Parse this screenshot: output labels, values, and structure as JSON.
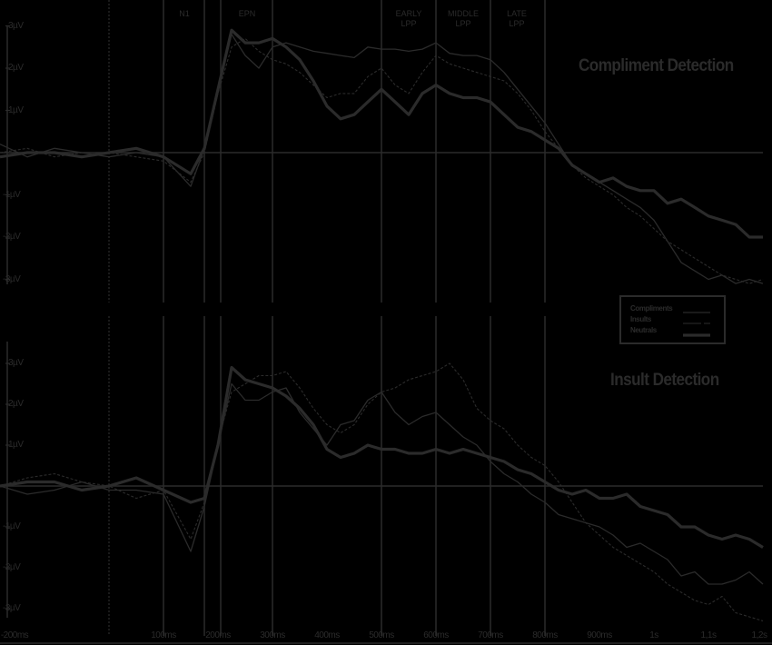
{
  "chart_data": [
    {
      "type": "line",
      "title": "Compliment Detection",
      "xlabel": "",
      "ylabel": "",
      "xlim_ms": [
        -200,
        1200
      ],
      "ylim_uV": [
        -3,
        3
      ],
      "y_ticks": [
        "3µV",
        "2µV",
        "1µV",
        "-1µV",
        "-2µV",
        "-3µV"
      ],
      "x_ticks": [
        "-200ms",
        "100ms",
        "200ms",
        "300ms",
        "400ms",
        "500ms",
        "600ms",
        "700ms",
        "800ms",
        "900ms",
        "1s",
        "1,1s",
        "1,2s"
      ],
      "time_windows": [
        {
          "label": "N1",
          "start_ms": 100,
          "end_ms": 175
        },
        {
          "label": "EPN",
          "start_ms": 205,
          "end_ms": 300
        },
        {
          "label": "EARLY LPP",
          "start_ms": 500,
          "end_ms": 600
        },
        {
          "label": "MIDDLE LPP",
          "start_ms": 600,
          "end_ms": 700
        },
        {
          "label": "LATE LPP",
          "start_ms": 700,
          "end_ms": 800
        }
      ],
      "x_ms": [
        -200,
        -150,
        -100,
        -50,
        0,
        50,
        100,
        150,
        175,
        200,
        225,
        250,
        275,
        300,
        325,
        350,
        375,
        400,
        425,
        450,
        475,
        500,
        525,
        550,
        575,
        600,
        625,
        650,
        675,
        700,
        725,
        750,
        775,
        800,
        825,
        850,
        875,
        900,
        925,
        950,
        975,
        1000,
        1025,
        1050,
        1075,
        1100,
        1125,
        1150,
        1175,
        1200
      ],
      "series": [
        {
          "name": "Compliments",
          "style": "thin-solid",
          "values": [
            0.2,
            -0.1,
            0.1,
            0.0,
            -0.1,
            0.0,
            -0.1,
            -0.8,
            0.1,
            1.5,
            2.8,
            2.3,
            2.0,
            2.5,
            2.6,
            2.5,
            2.4,
            2.35,
            2.3,
            2.25,
            2.5,
            2.45,
            2.45,
            2.4,
            2.45,
            2.6,
            2.35,
            2.3,
            2.3,
            2.2,
            1.9,
            1.5,
            1.1,
            0.7,
            0.2,
            -0.3,
            -0.5,
            -0.7,
            -0.9,
            -1.1,
            -1.3,
            -1.6,
            -2.1,
            -2.6,
            -2.8,
            -3.0,
            -2.9,
            -3.1,
            -3.0,
            -3.1
          ]
        },
        {
          "name": "Insults",
          "style": "thin-dash",
          "values": [
            0.0,
            0.1,
            -0.1,
            0.0,
            0.0,
            -0.1,
            -0.2,
            -0.7,
            0.0,
            1.4,
            2.5,
            2.7,
            2.4,
            2.2,
            2.1,
            1.9,
            1.6,
            1.3,
            1.4,
            1.4,
            1.8,
            2.0,
            1.6,
            1.4,
            1.9,
            2.3,
            2.1,
            2.0,
            1.9,
            1.8,
            1.7,
            1.4,
            1.0,
            0.5,
            0.1,
            -0.3,
            -0.6,
            -0.8,
            -1.0,
            -1.3,
            -1.5,
            -1.8,
            -2.1,
            -2.3,
            -2.5,
            -2.7,
            -2.9,
            -3.0,
            -3.1,
            -3.0
          ]
        },
        {
          "name": "Neutrals",
          "style": "thick-solid",
          "values": [
            -0.1,
            0.0,
            0.0,
            -0.1,
            0.0,
            0.1,
            -0.1,
            -0.5,
            0.1,
            1.5,
            2.9,
            2.6,
            2.6,
            2.7,
            2.5,
            2.2,
            1.7,
            1.1,
            0.8,
            0.9,
            1.2,
            1.5,
            1.2,
            0.9,
            1.4,
            1.6,
            1.4,
            1.3,
            1.3,
            1.2,
            0.9,
            0.6,
            0.5,
            0.3,
            0.1,
            -0.3,
            -0.5,
            -0.7,
            -0.6,
            -0.8,
            -0.9,
            -0.9,
            -1.2,
            -1.1,
            -1.3,
            -1.5,
            -1.6,
            -1.7,
            -2.0,
            -2.0
          ]
        }
      ]
    },
    {
      "type": "line",
      "title": "Insult Detection",
      "xlabel": "",
      "ylabel": "",
      "xlim_ms": [
        -200,
        1200
      ],
      "ylim_uV": [
        -3,
        3
      ],
      "y_ticks": [
        "3µV",
        "2µV",
        "1µV",
        "-1µV",
        "-2µV",
        "-3µV"
      ],
      "x_ticks": [
        "-200ms",
        "100ms",
        "200ms",
        "300ms",
        "400ms",
        "500ms",
        "600ms",
        "700ms",
        "800ms",
        "900ms",
        "1s",
        "1,1s",
        "1,2s"
      ],
      "time_windows": [
        {
          "label": "N1",
          "start_ms": 100,
          "end_ms": 175
        },
        {
          "label": "EPN",
          "start_ms": 205,
          "end_ms": 300
        },
        {
          "label": "EARLY LPP",
          "start_ms": 500,
          "end_ms": 600
        },
        {
          "label": "MIDDLE LPP",
          "start_ms": 600,
          "end_ms": 700
        },
        {
          "label": "LATE LPP",
          "start_ms": 700,
          "end_ms": 800
        }
      ],
      "x_ms": [
        -200,
        -150,
        -100,
        -50,
        0,
        50,
        100,
        150,
        175,
        200,
        225,
        250,
        275,
        300,
        325,
        350,
        375,
        400,
        425,
        450,
        475,
        500,
        525,
        550,
        575,
        600,
        625,
        650,
        675,
        700,
        725,
        750,
        775,
        800,
        825,
        850,
        875,
        900,
        925,
        950,
        975,
        1000,
        1025,
        1050,
        1075,
        1100,
        1125,
        1150,
        1175,
        1200
      ],
      "series": [
        {
          "name": "Compliments",
          "style": "thin-solid",
          "values": [
            0.0,
            -0.2,
            -0.1,
            0.1,
            -0.1,
            -0.1,
            -0.2,
            -1.6,
            -0.5,
            1.0,
            2.5,
            2.1,
            2.1,
            2.3,
            2.4,
            1.8,
            1.4,
            1.0,
            1.5,
            1.6,
            2.1,
            2.3,
            1.8,
            1.5,
            1.7,
            1.8,
            1.5,
            1.2,
            1.0,
            0.6,
            0.3,
            0.1,
            -0.2,
            -0.4,
            -0.7,
            -0.8,
            -0.9,
            -1.0,
            -1.2,
            -1.5,
            -1.4,
            -1.6,
            -1.8,
            -2.2,
            -2.1,
            -2.4,
            -2.4,
            -2.3,
            -2.1,
            -2.4
          ]
        },
        {
          "name": "Insults",
          "style": "thin-dash",
          "values": [
            0.0,
            0.2,
            0.3,
            0.1,
            0.0,
            -0.3,
            -0.1,
            -1.3,
            -0.4,
            1.1,
            2.3,
            2.5,
            2.7,
            2.7,
            2.8,
            2.4,
            1.9,
            1.5,
            1.3,
            1.5,
            2.0,
            2.3,
            2.4,
            2.6,
            2.7,
            2.8,
            3.0,
            2.6,
            1.9,
            1.6,
            1.4,
            1.0,
            0.7,
            0.5,
            0.1,
            -0.4,
            -0.9,
            -1.2,
            -1.5,
            -1.7,
            -1.9,
            -2.1,
            -2.4,
            -2.6,
            -2.8,
            -2.9,
            -2.7,
            -3.1,
            -3.2,
            -3.3
          ]
        },
        {
          "name": "Neutrals",
          "style": "thick-solid",
          "values": [
            0.0,
            0.1,
            0.1,
            -0.1,
            0.0,
            0.2,
            -0.1,
            -0.4,
            -0.3,
            1.0,
            2.9,
            2.6,
            2.5,
            2.4,
            2.2,
            1.9,
            1.5,
            0.9,
            0.7,
            0.8,
            1.0,
            0.9,
            0.9,
            0.8,
            0.8,
            0.9,
            0.8,
            0.9,
            0.8,
            0.7,
            0.6,
            0.4,
            0.3,
            0.1,
            -0.1,
            -0.2,
            -0.1,
            -0.3,
            -0.3,
            -0.2,
            -0.5,
            -0.6,
            -0.7,
            -1.0,
            -1.0,
            -1.2,
            -1.3,
            -1.2,
            -1.3,
            -1.5
          ]
        }
      ]
    }
  ],
  "panels": {
    "top": {
      "title": "Compliment Detection"
    },
    "bottom": {
      "title": "Insult Detection"
    }
  },
  "axis": {
    "y_ticks": [
      "3µV",
      "2µV",
      "1µV",
      "-1µV",
      "-2µV",
      "-3µV"
    ],
    "x_ticks": [
      "-200ms",
      "100ms",
      "200ms",
      "300ms",
      "400ms",
      "500ms",
      "600ms",
      "700ms",
      "800ms",
      "900ms",
      "1s",
      "1,1s",
      "1,2s"
    ]
  },
  "windows": {
    "n1": "N1",
    "epn": "EPN",
    "early_lpp_1": "EARLY",
    "early_lpp_2": "LPP",
    "middle_lpp_1": "MIDDLE",
    "middle_lpp_2": "LPP",
    "late_lpp_1": "LATE",
    "late_lpp_2": "LPP"
  },
  "legend": {
    "items": [
      {
        "label": "Compliments",
        "style": "thin-solid"
      },
      {
        "label": "Insults",
        "style": "thin-dash"
      },
      {
        "label": "Neutrals",
        "style": "thick-solid"
      }
    ]
  },
  "colors": {
    "ink": "#2b2b2b",
    "background": "#000000"
  }
}
